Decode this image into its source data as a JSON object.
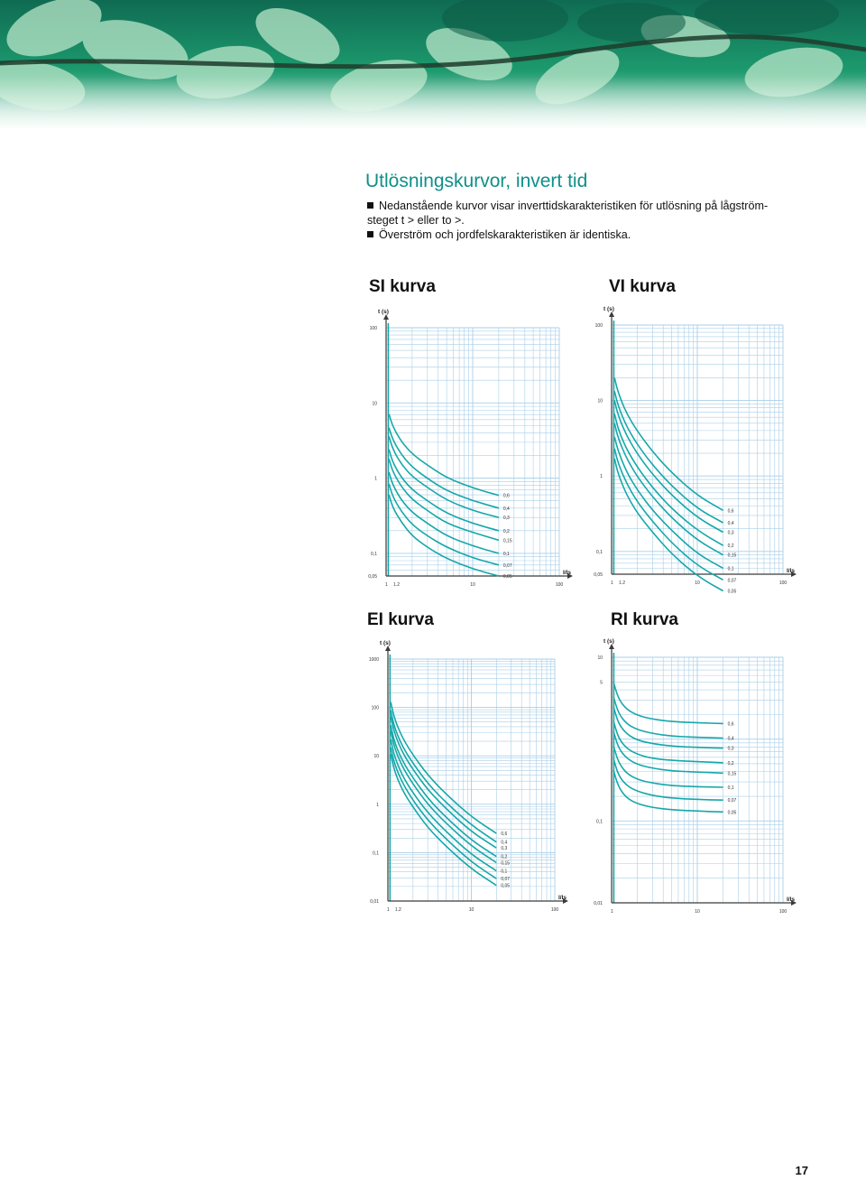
{
  "page": {
    "title": "Utlösningskurvor, invert tid",
    "bullets": [
      "Nedanstående kurvor visar inverttidskarakteristiken för utlösning på lågström-",
      "steget t > eller to >.",
      "Överström och jordfelskarakteristiken är identiska."
    ],
    "page_number": "17"
  },
  "colors": {
    "accent": "#0e9088",
    "curve": "#16a7a9",
    "grid": "#a9cfe8",
    "axis": "#3a3a3a"
  },
  "chart_data": [
    {
      "type": "line",
      "heading": "SI kurva",
      "ylabel": "t (s)",
      "xlabel": "I/Is",
      "x_scale": "log",
      "y_scale": "log",
      "xlim": [
        1,
        100
      ],
      "ylim": [
        0.05,
        100
      ],
      "x_ticks": [
        "1",
        "1.2",
        "10",
        "100"
      ],
      "y_ticks": [
        "0,05",
        "0,1",
        "1",
        "10",
        "100"
      ],
      "series": [
        {
          "name": "0,6",
          "x": [
            1.08,
            1.2,
            1.5,
            2,
            3,
            5,
            10,
            20
          ],
          "y": [
            7.1,
            4.8,
            3.06,
            2.09,
            1.49,
            1.01,
            0.74,
            0.59
          ]
        },
        {
          "name": "0,4",
          "x": [
            1.08,
            1.2,
            1.5,
            2,
            3,
            5,
            10,
            20
          ],
          "y": [
            4.7,
            3.2,
            2.05,
            1.4,
            0.99,
            0.68,
            0.5,
            0.4
          ]
        },
        {
          "name": "0,3",
          "x": [
            1.08,
            1.2,
            1.5,
            2,
            3,
            5,
            10,
            20
          ],
          "y": [
            3.6,
            2.4,
            1.53,
            1.05,
            0.75,
            0.51,
            0.37,
            0.3
          ]
        },
        {
          "name": "0,2",
          "x": [
            1.08,
            1.2,
            1.5,
            2,
            3,
            5,
            10,
            20
          ],
          "y": [
            2.4,
            1.6,
            1.02,
            0.7,
            0.5,
            0.34,
            0.25,
            0.2
          ]
        },
        {
          "name": "0,15",
          "x": [
            1.08,
            1.2,
            1.5,
            2,
            3,
            5,
            10,
            20
          ],
          "y": [
            1.8,
            1.2,
            0.77,
            0.52,
            0.37,
            0.25,
            0.19,
            0.15
          ]
        },
        {
          "name": "0,1",
          "x": [
            1.08,
            1.2,
            1.5,
            2,
            3,
            5,
            10,
            20
          ],
          "y": [
            1.2,
            0.8,
            0.51,
            0.35,
            0.25,
            0.17,
            0.125,
            0.1
          ]
        },
        {
          "name": "0,07",
          "x": [
            1.08,
            1.2,
            1.5,
            2,
            3,
            5,
            10,
            20
          ],
          "y": [
            0.84,
            0.56,
            0.36,
            0.24,
            0.17,
            0.12,
            0.087,
            0.07
          ]
        },
        {
          "name": "0,05",
          "x": [
            1.08,
            1.2,
            1.5,
            2,
            3,
            5,
            10,
            20
          ],
          "y": [
            0.6,
            0.4,
            0.26,
            0.17,
            0.12,
            0.085,
            0.062,
            0.05
          ]
        }
      ]
    },
    {
      "type": "line",
      "heading": "VI kurva",
      "ylabel": "t (s)",
      "xlabel": "I/Is",
      "x_scale": "log",
      "y_scale": "log",
      "xlim": [
        1,
        100
      ],
      "ylim": [
        0.05,
        100
      ],
      "x_ticks": [
        "1",
        "1.2",
        "10",
        "100"
      ],
      "y_ticks": [
        "0,05",
        "0,1",
        "1",
        "10",
        "100"
      ],
      "series": [
        {
          "name": "0,6",
          "x": [
            1.08,
            1.2,
            1.5,
            2,
            3,
            5,
            10,
            20
          ],
          "y": [
            20,
            12.4,
            6.7,
            3.9,
            2.1,
            1.11,
            0.55,
            0.35
          ]
        },
        {
          "name": "0,4",
          "x": [
            1.08,
            1.2,
            1.5,
            2,
            3,
            5,
            10,
            20
          ],
          "y": [
            13.3,
            8.3,
            4.5,
            2.6,
            1.4,
            0.74,
            0.37,
            0.24
          ]
        },
        {
          "name": "0,3",
          "x": [
            1.08,
            1.2,
            1.5,
            2,
            3,
            5,
            10,
            20
          ],
          "y": [
            10,
            6.2,
            3.4,
            1.95,
            1.05,
            0.56,
            0.28,
            0.18
          ]
        },
        {
          "name": "0,2",
          "x": [
            1.08,
            1.2,
            1.5,
            2,
            3,
            5,
            10,
            20
          ],
          "y": [
            6.7,
            4.1,
            2.25,
            1.3,
            0.7,
            0.37,
            0.19,
            0.12
          ]
        },
        {
          "name": "0,15",
          "x": [
            1.08,
            1.2,
            1.5,
            2,
            3,
            5,
            10,
            20
          ],
          "y": [
            5.0,
            3.1,
            1.7,
            0.97,
            0.53,
            0.28,
            0.14,
            0.09
          ]
        },
        {
          "name": "0,1",
          "x": [
            1.08,
            1.2,
            1.5,
            2,
            3,
            5,
            10,
            20
          ],
          "y": [
            3.3,
            2.1,
            1.12,
            0.65,
            0.35,
            0.19,
            0.093,
            0.06
          ]
        },
        {
          "name": "0,07",
          "x": [
            1.08,
            1.2,
            1.5,
            2,
            3,
            5,
            10,
            20
          ],
          "y": [
            2.3,
            1.45,
            0.79,
            0.45,
            0.25,
            0.13,
            0.065,
            0.042
          ]
        },
        {
          "name": "0,05",
          "x": [
            1.08,
            1.2,
            1.5,
            2,
            3,
            5,
            10,
            20
          ],
          "y": [
            1.7,
            1.04,
            0.56,
            0.32,
            0.18,
            0.093,
            0.047,
            0.03
          ]
        }
      ]
    },
    {
      "type": "line",
      "heading": "EI kurva",
      "ylabel": "t (s)",
      "xlabel": "I/Is",
      "x_scale": "log",
      "y_scale": "log",
      "xlim": [
        1,
        100
      ],
      "ylim": [
        0.01,
        1000
      ],
      "x_ticks": [
        "1",
        "1.2",
        "10",
        "100"
      ],
      "y_ticks": [
        "0,01",
        "0,1",
        "1",
        "10",
        "100",
        "1000"
      ],
      "series": [
        {
          "name": "0,6",
          "x": [
            1.08,
            1.2,
            1.5,
            2,
            3,
            5,
            10,
            20
          ],
          "y": [
            130,
            58,
            23,
            10.4,
            4.0,
            1.6,
            0.55,
            0.25
          ]
        },
        {
          "name": "0,4",
          "x": [
            1.08,
            1.2,
            1.5,
            2,
            3,
            5,
            10,
            20
          ],
          "y": [
            87,
            38,
            15.3,
            7.0,
            2.7,
            1.07,
            0.37,
            0.165
          ]
        },
        {
          "name": "0,3",
          "x": [
            1.08,
            1.2,
            1.5,
            2,
            3,
            5,
            10,
            20
          ],
          "y": [
            65,
            29,
            11.5,
            5.2,
            2.0,
            0.8,
            0.27,
            0.125
          ]
        },
        {
          "name": "0,2",
          "x": [
            1.08,
            1.2,
            1.5,
            2,
            3,
            5,
            10,
            20
          ],
          "y": [
            43,
            19,
            7.7,
            3.5,
            1.33,
            0.53,
            0.18,
            0.083
          ]
        },
        {
          "name": "0,15",
          "x": [
            1.08,
            1.2,
            1.5,
            2,
            3,
            5,
            10,
            20
          ],
          "y": [
            33,
            14.4,
            5.8,
            2.6,
            1.0,
            0.4,
            0.137,
            0.062
          ]
        },
        {
          "name": "0,1",
          "x": [
            1.08,
            1.2,
            1.5,
            2,
            3,
            5,
            10,
            20
          ],
          "y": [
            22,
            9.6,
            3.8,
            1.7,
            0.67,
            0.27,
            0.091,
            0.042
          ]
        },
        {
          "name": "0,07",
          "x": [
            1.08,
            1.2,
            1.5,
            2,
            3,
            5,
            10,
            20
          ],
          "y": [
            15,
            6.7,
            2.7,
            1.2,
            0.47,
            0.19,
            0.064,
            0.029
          ]
        },
        {
          "name": "0,05",
          "x": [
            1.08,
            1.2,
            1.5,
            2,
            3,
            5,
            10,
            20
          ],
          "y": [
            11,
            4.8,
            1.9,
            0.87,
            0.33,
            0.133,
            0.046,
            0.021
          ]
        }
      ]
    },
    {
      "type": "line",
      "heading": "RI kurva",
      "ylabel": "t (s)",
      "xlabel": "I/Is",
      "x_scale": "log",
      "y_scale": "log",
      "xlim": [
        1,
        100
      ],
      "ylim": [
        0.01,
        10
      ],
      "x_ticks": [
        "1",
        "10",
        "100"
      ],
      "y_ticks": [
        "0,01",
        "0,1",
        "5",
        "10"
      ],
      "series": [
        {
          "name": "0,6",
          "x": [
            1.05,
            1.2,
            1.5,
            2,
            3,
            5,
            10,
            20
          ],
          "y": [
            5.0,
            3.1,
            2.3,
            1.95,
            1.75,
            1.64,
            1.58,
            1.55
          ]
        },
        {
          "name": "0,4",
          "x": [
            1.05,
            1.2,
            1.5,
            2,
            3,
            5,
            10,
            20
          ],
          "y": [
            3.3,
            2.07,
            1.53,
            1.3,
            1.17,
            1.09,
            1.05,
            1.03
          ]
        },
        {
          "name": "0,3",
          "x": [
            1.05,
            1.2,
            1.5,
            2,
            3,
            5,
            10,
            20
          ],
          "y": [
            2.5,
            1.55,
            1.15,
            0.97,
            0.88,
            0.82,
            0.79,
            0.775
          ]
        },
        {
          "name": "0,2",
          "x": [
            1.05,
            1.2,
            1.5,
            2,
            3,
            5,
            10,
            20
          ],
          "y": [
            1.67,
            1.03,
            0.77,
            0.65,
            0.58,
            0.55,
            0.53,
            0.515
          ]
        },
        {
          "name": "0,15",
          "x": [
            1.05,
            1.2,
            1.5,
            2,
            3,
            5,
            10,
            20
          ],
          "y": [
            1.25,
            0.78,
            0.58,
            0.49,
            0.44,
            0.41,
            0.395,
            0.385
          ]
        },
        {
          "name": "0,1",
          "x": [
            1.05,
            1.2,
            1.5,
            2,
            3,
            5,
            10,
            20
          ],
          "y": [
            0.83,
            0.52,
            0.38,
            0.32,
            0.29,
            0.27,
            0.262,
            0.258
          ]
        },
        {
          "name": "0,07",
          "x": [
            1.05,
            1.2,
            1.5,
            2,
            3,
            5,
            10,
            20
          ],
          "y": [
            0.58,
            0.36,
            0.27,
            0.23,
            0.205,
            0.19,
            0.183,
            0.18
          ]
        },
        {
          "name": "0,05",
          "x": [
            1.05,
            1.2,
            1.5,
            2,
            3,
            5,
            10,
            20
          ],
          "y": [
            0.42,
            0.26,
            0.19,
            0.162,
            0.146,
            0.137,
            0.132,
            0.129
          ]
        }
      ]
    }
  ]
}
